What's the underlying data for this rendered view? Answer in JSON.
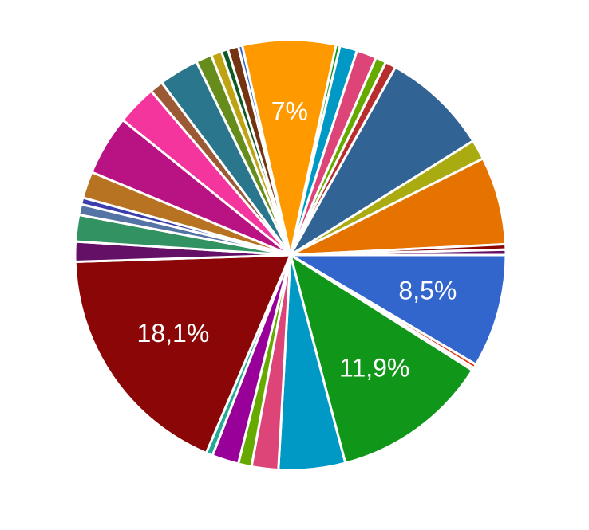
{
  "chart_data": {
    "type": "pie",
    "start_angle": 0,
    "direction": "clockwise",
    "values": [
      8.5,
      0.3,
      0.2,
      11.9,
      5,
      2,
      1,
      2,
      0.5,
      18.1,
      1.5,
      2,
      0.8,
      0.5,
      2,
      4.5,
      3,
      1,
      3,
      1.2,
      0.8,
      0.5,
      0.8,
      0.3,
      7,
      0.3,
      1.3,
      1.5,
      0.8,
      0.8,
      8,
      1.5,
      6.6,
      0.4,
      0.4
    ],
    "value_labels": [
      "8,5%",
      null,
      null,
      "11,9%",
      null,
      null,
      null,
      null,
      null,
      "18,1%",
      null,
      null,
      null,
      null,
      null,
      null,
      null,
      null,
      null,
      null,
      null,
      null,
      null,
      null,
      "7%",
      null,
      null,
      null,
      null,
      null,
      null,
      null,
      null,
      null,
      null
    ],
    "colors": [
      "#3366cc",
      "#dc3912",
      "#ff9900",
      "#109618",
      "#0099c6",
      "#dd4477",
      "#66aa00",
      "#990099",
      "#22aa99",
      "#8b0707",
      "#651067",
      "#329262",
      "#5574a6",
      "#3b3eac",
      "#b77322",
      "#b91383",
      "#f4359e",
      "#9c5935",
      "#2a778d",
      "#668d1c",
      "#bea413",
      "#0c5922",
      "#743411",
      "#3366cc",
      "#ff9900",
      "#109618",
      "#0099c6",
      "#dd4477",
      "#66aa00",
      "#b82e2e",
      "#316395",
      "#aaaa11",
      "#e67300",
      "#8b0707",
      "#651067"
    ]
  }
}
